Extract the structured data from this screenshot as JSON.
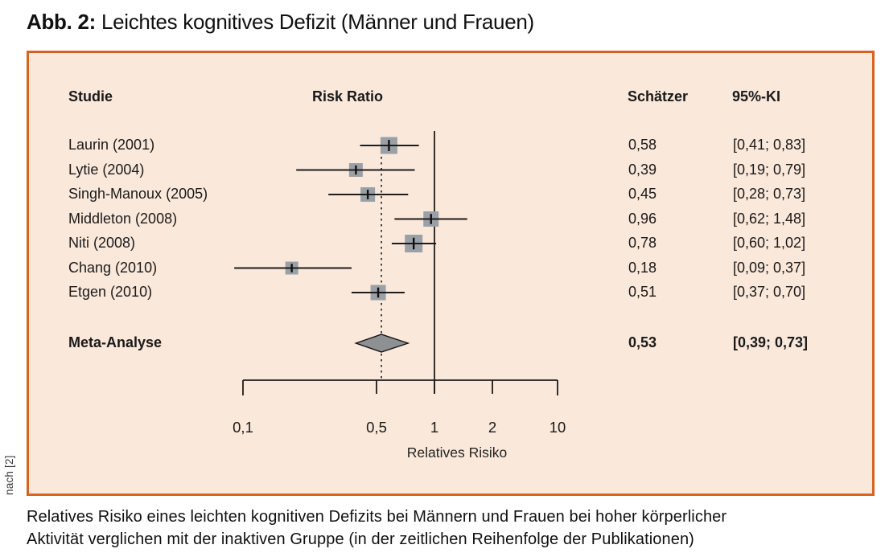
{
  "title": {
    "label_bold": "Abb. 2:",
    "label_rest": " Leichtes kognitives Defizit (Männer und Frauen)"
  },
  "headers": {
    "study": "Studie",
    "plot": "Risk Ratio",
    "estimate": "Schätzer",
    "ci": "95%-KI"
  },
  "source_note": "nach [2]",
  "caption_line1": "Relatives Risiko eines leichten kognitiven Defizits bei Männern und Frauen bei hoher körperlicher",
  "caption_line2": "Aktivität verglichen mit der inaktiven Gruppe (in der zeitlichen Reihenfolge der Publikationen)",
  "chart_data": {
    "type": "forest",
    "title": "Leichtes kognitives Defizit (Männer und Frauen)",
    "x_axis": {
      "scale": "log",
      "ticks": [
        0.1,
        0.5,
        1,
        2,
        10
      ],
      "tick_labels": [
        "0,1",
        "0,5",
        "1",
        "2",
        "10"
      ],
      "label": "Relatives Risiko",
      "reference_line": 1.0,
      "pooled_line": 0.53
    },
    "studies": [
      {
        "label": "Laurin (2001)",
        "estimate": 0.58,
        "ci": [
          0.41,
          0.83
        ],
        "estimate_label": "0,58",
        "ci_label": "[0,41; 0,83]",
        "marker_size": 21
      },
      {
        "label": "Lytie (2004)",
        "estimate": 0.39,
        "ci": [
          0.19,
          0.79
        ],
        "estimate_label": "0,39",
        "ci_label": "[0,19; 0,79]",
        "marker_size": 17
      },
      {
        "label": "Singh-Manoux (2005)",
        "estimate": 0.45,
        "ci": [
          0.28,
          0.73
        ],
        "estimate_label": "0,45",
        "ci_label": "[0,28; 0,73]",
        "marker_size": 18
      },
      {
        "label": "Middleton (2008)",
        "estimate": 0.96,
        "ci": [
          0.62,
          1.48
        ],
        "estimate_label": "0,96",
        "ci_label": "[0,62; 1,48]",
        "marker_size": 19
      },
      {
        "label": "Niti (2008)",
        "estimate": 0.78,
        "ci": [
          0.6,
          1.02
        ],
        "estimate_label": "0,78",
        "ci_label": "[0,60; 1,02]",
        "marker_size": 22
      },
      {
        "label": "Chang (2010)",
        "estimate": 0.18,
        "ci": [
          0.09,
          0.37
        ],
        "estimate_label": "0,18",
        "ci_label": "[0,09; 0,37]",
        "marker_size": 16
      },
      {
        "label": "Etgen (2010)",
        "estimate": 0.51,
        "ci": [
          0.37,
          0.7
        ],
        "estimate_label": "0,51",
        "ci_label": "[0,37; 0,70]",
        "marker_size": 19
      }
    ],
    "meta": {
      "label": "Meta-Analyse",
      "estimate": 0.53,
      "ci": [
        0.39,
        0.73
      ],
      "estimate_label": "0,53",
      "ci_label": "[0,39; 0,73]"
    },
    "colors": {
      "panel_bg": "#fae8da",
      "panel_border": "#d8631f",
      "marker_fill": "#9aa0a5",
      "diamond_fill": "#8d9194",
      "line": "#1c1c1c",
      "text": "#1a1a1a"
    }
  }
}
